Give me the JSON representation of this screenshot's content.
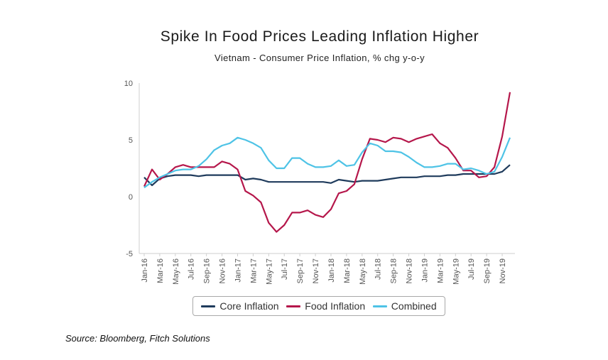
{
  "title": "Spike In Food Prices Leading Inflation Higher",
  "subtitle": "Vietnam - Consumer Price Inflation, % chg y-o-y",
  "source": "Source: Bloomberg, Fitch Solutions",
  "chart_data": {
    "type": "line",
    "x": [
      "Jan-16",
      "Feb-16",
      "Mar-16",
      "Apr-16",
      "May-16",
      "Jun-16",
      "Jul-16",
      "Aug-16",
      "Sep-16",
      "Oct-16",
      "Nov-16",
      "Dec-16",
      "Jan-17",
      "Feb-17",
      "Mar-17",
      "Apr-17",
      "May-17",
      "Jun-17",
      "Jul-17",
      "Aug-17",
      "Sep-17",
      "Oct-17",
      "Nov-17",
      "Dec-17",
      "Jan-18",
      "Feb-18",
      "Mar-18",
      "Apr-18",
      "May-18",
      "Jun-18",
      "Jul-18",
      "Aug-18",
      "Sep-18",
      "Oct-18",
      "Nov-18",
      "Dec-18",
      "Jan-19",
      "Feb-19",
      "Mar-19",
      "Apr-19",
      "May-19",
      "Jun-19",
      "Jul-19",
      "Aug-19",
      "Sep-19",
      "Oct-19",
      "Nov-19",
      "Dec-19"
    ],
    "x_tick_labels": [
      "Jan-16",
      "Mar-16",
      "May-16",
      "Jul-16",
      "Sep-16",
      "Nov-16",
      "Jan-17",
      "Mar-17",
      "May-17",
      "Jul-17",
      "Sep-17",
      "Nov-17",
      "Jan-18",
      "Mar-18",
      "May-18",
      "Jul-18",
      "Sep-18",
      "Nov-18",
      "Jan-19",
      "Mar-19",
      "May-19",
      "Jul-19",
      "Sep-19",
      "Nov-19"
    ],
    "ylim": [
      -5,
      10
    ],
    "y_ticks": [
      "10",
      "5",
      "0",
      "-5"
    ],
    "legend_position": "bottom",
    "grid": false,
    "series": [
      {
        "name": "Core Inflation",
        "color": "#1f3b5c",
        "values": [
          1.7,
          1.0,
          1.6,
          1.8,
          1.9,
          1.9,
          1.9,
          1.8,
          1.9,
          1.9,
          1.9,
          1.9,
          1.9,
          1.5,
          1.6,
          1.5,
          1.3,
          1.3,
          1.3,
          1.3,
          1.3,
          1.3,
          1.3,
          1.3,
          1.2,
          1.5,
          1.4,
          1.3,
          1.4,
          1.4,
          1.4,
          1.5,
          1.6,
          1.7,
          1.7,
          1.7,
          1.8,
          1.8,
          1.8,
          1.9,
          1.9,
          2.0,
          2.0,
          2.0,
          2.0,
          2.0,
          2.2,
          2.8
        ]
      },
      {
        "name": "Food Inflation",
        "color": "#b5174b",
        "values": [
          0.9,
          2.4,
          1.5,
          2.0,
          2.6,
          2.8,
          2.6,
          2.6,
          2.6,
          2.6,
          3.1,
          2.9,
          2.4,
          0.5,
          0.1,
          -0.5,
          -2.3,
          -3.1,
          -2.5,
          -1.4,
          -1.4,
          -1.2,
          -1.6,
          -1.8,
          -1.1,
          0.3,
          0.5,
          1.1,
          3.3,
          5.1,
          5.0,
          4.8,
          5.2,
          5.1,
          4.8,
          5.1,
          5.3,
          5.5,
          4.7,
          4.3,
          3.4,
          2.3,
          2.3,
          1.7,
          1.8,
          2.6,
          5.3,
          9.2
        ]
      },
      {
        "name": "Combined",
        "color": "#4ec3e6",
        "values": [
          0.8,
          1.3,
          1.7,
          2.0,
          2.3,
          2.4,
          2.4,
          2.7,
          3.3,
          4.1,
          4.5,
          4.7,
          5.2,
          5.0,
          4.7,
          4.3,
          3.2,
          2.5,
          2.5,
          3.4,
          3.4,
          2.9,
          2.6,
          2.6,
          2.7,
          3.2,
          2.7,
          2.8,
          3.9,
          4.7,
          4.5,
          4.0,
          4.0,
          3.9,
          3.5,
          3.0,
          2.6,
          2.6,
          2.7,
          2.9,
          2.9,
          2.4,
          2.5,
          2.3,
          2.0,
          2.2,
          3.5,
          5.2
        ]
      }
    ]
  }
}
